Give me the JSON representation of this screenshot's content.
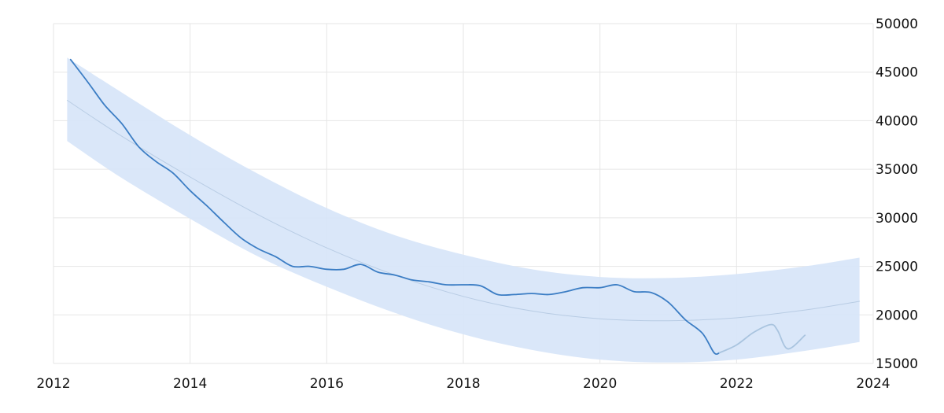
{
  "chart_data": {
    "type": "area",
    "title": "",
    "xlabel": "",
    "ylabel": "",
    "xlim": [
      2012,
      2024
    ],
    "ylim": [
      15000,
      50000
    ],
    "x_ticks": [
      2012,
      2014,
      2016,
      2018,
      2020,
      2022,
      2024
    ],
    "y_ticks": [
      15000,
      20000,
      25000,
      30000,
      35000,
      40000,
      45000,
      50000
    ],
    "y_axis_side": "right",
    "grid": true,
    "legend": "none",
    "series": [
      {
        "role": "forecast-band",
        "color": "#d6e4f8",
        "x": [
          2012.2,
          2013,
          2014,
          2015,
          2016,
          2017,
          2018,
          2019,
          2020,
          2021,
          2022,
          2023,
          2023.8
        ],
        "upper": [
          46500,
          42900,
          38500,
          34500,
          31000,
          28200,
          26200,
          24700,
          23900,
          23800,
          24200,
          25000,
          25900
        ],
        "lower": [
          37900,
          34100,
          29900,
          26000,
          22900,
          20200,
          18000,
          16400,
          15400,
          15100,
          15400,
          16300,
          17200
        ]
      },
      {
        "role": "trend",
        "color": "#b8cce4",
        "x": [
          2012.2,
          2013,
          2014,
          2015,
          2016,
          2017,
          2018,
          2019,
          2020,
          2021,
          2022,
          2023,
          2023.8
        ],
        "y": [
          42100,
          38400,
          34200,
          30300,
          26900,
          24100,
          21900,
          20400,
          19600,
          19400,
          19700,
          20500,
          21400
        ]
      },
      {
        "role": "actual",
        "color": "#3b7dc4",
        "x": [
          2012.25,
          2012.5,
          2012.75,
          2013,
          2013.25,
          2013.5,
          2013.75,
          2014,
          2014.25,
          2014.5,
          2014.75,
          2015,
          2015.25,
          2015.5,
          2015.75,
          2016,
          2016.25,
          2016.5,
          2016.75,
          2017,
          2017.25,
          2017.5,
          2017.75,
          2018,
          2018.25,
          2018.5,
          2018.75,
          2019,
          2019.25,
          2019.5,
          2019.75,
          2020,
          2020.25,
          2020.5,
          2020.75,
          2021,
          2021.25,
          2021.5,
          2021.67,
          2021.75
        ],
        "y": [
          46300,
          44000,
          41600,
          39700,
          37300,
          35800,
          34600,
          32800,
          31200,
          29500,
          27900,
          26800,
          26000,
          25000,
          25000,
          24700,
          24700,
          25200,
          24400,
          24100,
          23600,
          23400,
          23100,
          23100,
          23000,
          22100,
          22100,
          22200,
          22100,
          22400,
          22800,
          22800,
          23100,
          22400,
          22300,
          21300,
          19500,
          18100,
          16100,
          16100
        ]
      },
      {
        "role": "forecast",
        "color": "#a9c4df",
        "x": [
          2021.75,
          2022,
          2022.25,
          2022.5,
          2022.6,
          2022.75,
          2023
        ],
        "y": [
          16100,
          16900,
          18200,
          19000,
          18400,
          16500,
          17900
        ]
      }
    ]
  }
}
